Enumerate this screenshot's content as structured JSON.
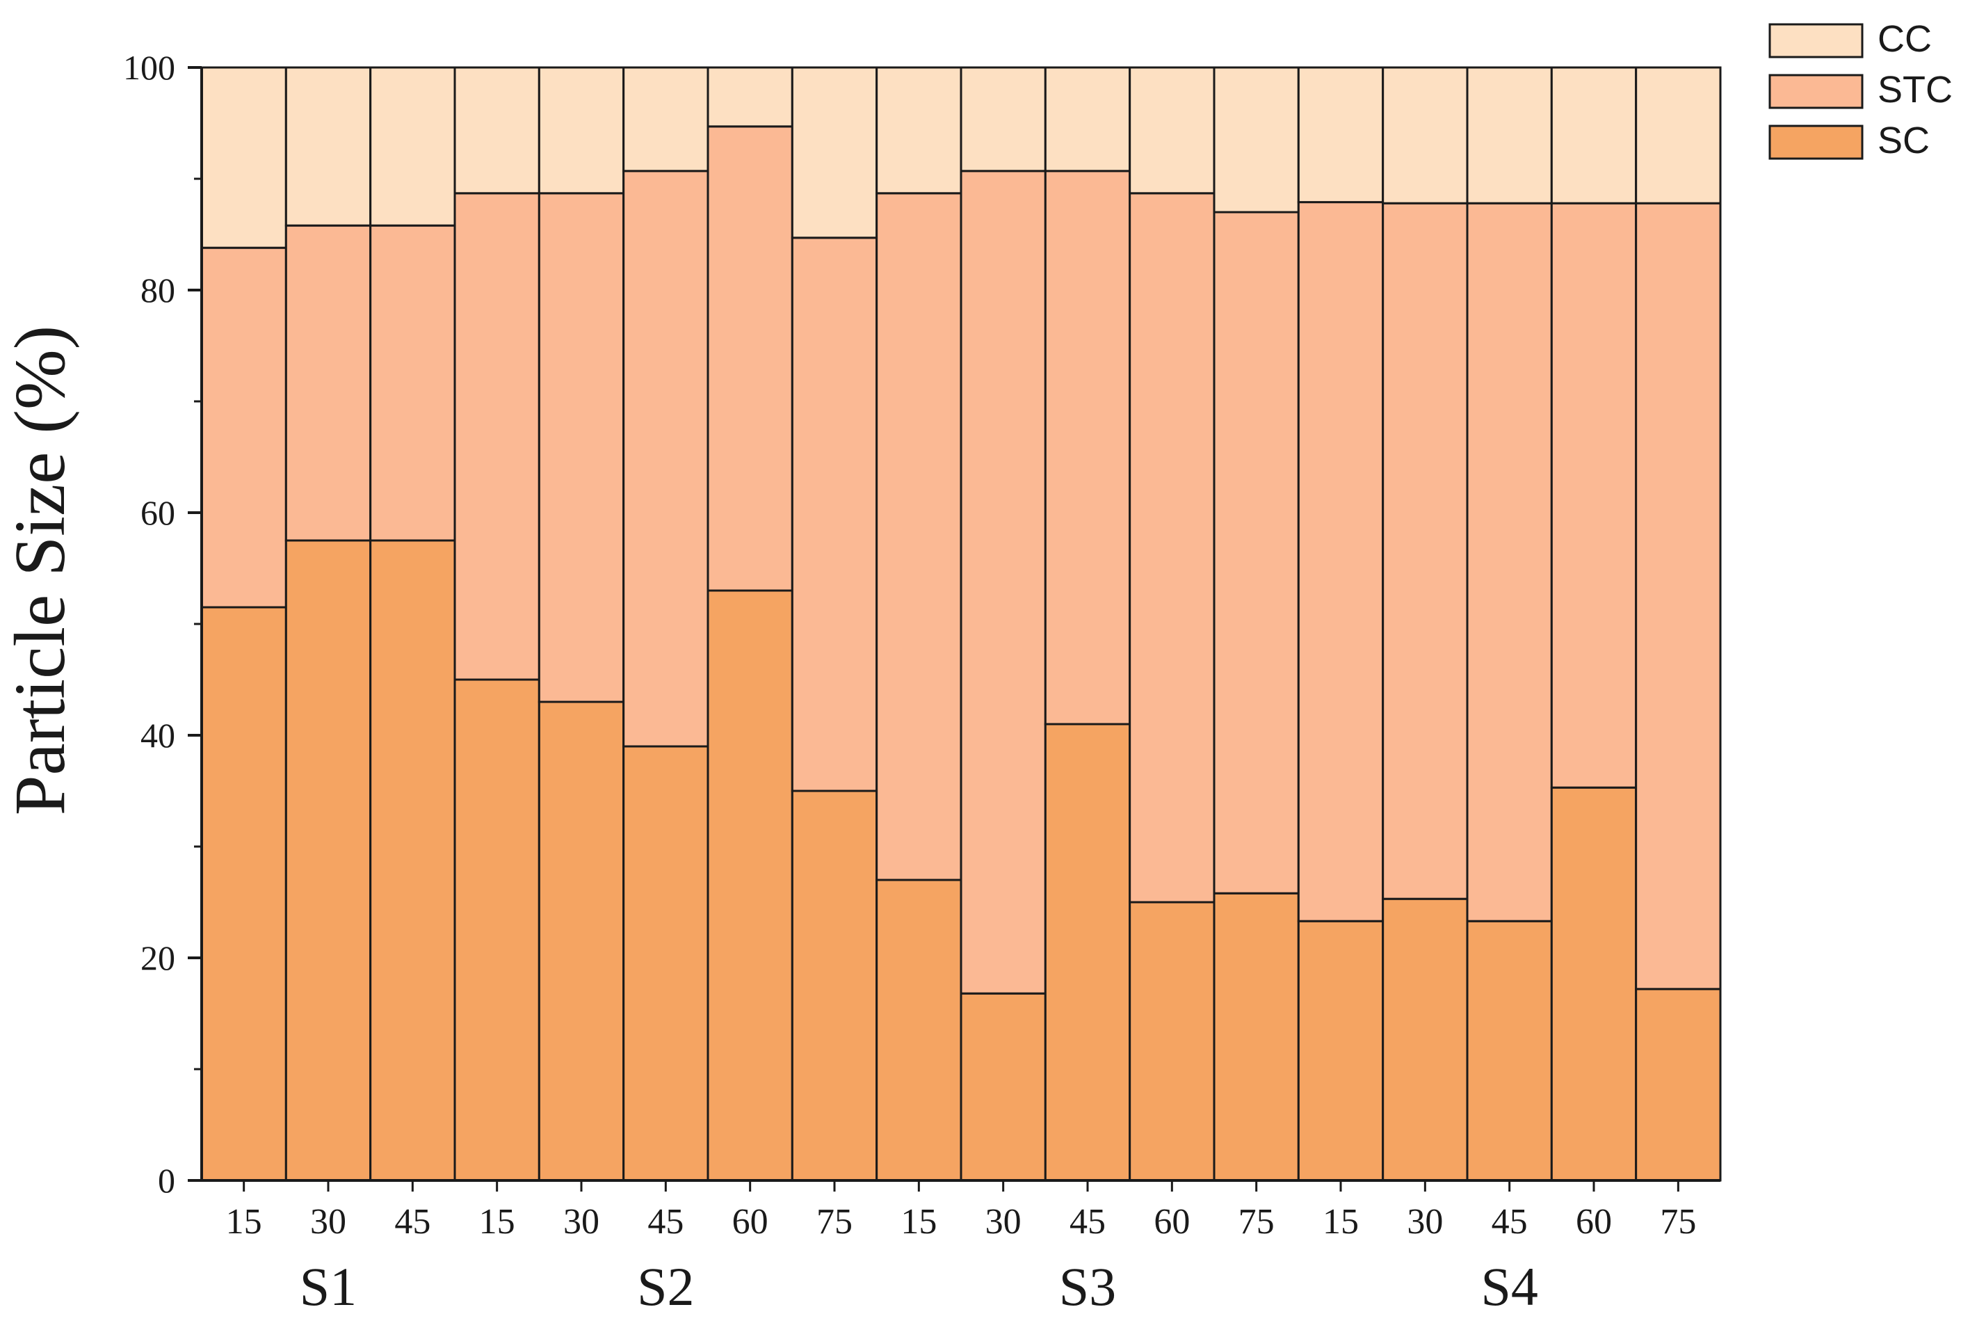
{
  "chart_data": {
    "type": "bar",
    "stacked": true,
    "ylabel": "Particle Size (%)",
    "xlabel": "",
    "ylim": [
      0,
      100
    ],
    "yticks": [
      "0",
      "20",
      "40",
      "60",
      "80",
      "100"
    ],
    "categories": [
      "15",
      "30",
      "45",
      "15",
      "30",
      "45",
      "60",
      "75",
      "15",
      "30",
      "45",
      "60",
      "75",
      "15",
      "30",
      "45",
      "60",
      "75"
    ],
    "groups": [
      {
        "label": "S1",
        "count": 3
      },
      {
        "label": "S2",
        "count": 5
      },
      {
        "label": "S3",
        "count": 5
      },
      {
        "label": "S4",
        "count": 5
      }
    ],
    "series": [
      {
        "name": "SC",
        "color": "#f5a462",
        "values": [
          51.5,
          57.5,
          57.5,
          45.0,
          43.0,
          39.0,
          53.0,
          35.0,
          27.0,
          16.8,
          41.0,
          25.0,
          25.8,
          23.3,
          25.3,
          23.3,
          35.3,
          17.2
        ]
      },
      {
        "name": "STC",
        "color": "#fbb994",
        "values": [
          32.3,
          28.3,
          28.3,
          43.7,
          45.7,
          51.7,
          41.7,
          49.7,
          61.7,
          73.9,
          49.7,
          63.7,
          61.2,
          64.6,
          62.5,
          64.5,
          52.5,
          70.6
        ]
      },
      {
        "name": "CC",
        "color": "#fde0c2",
        "values": [
          16.2,
          14.2,
          14.2,
          11.3,
          11.3,
          9.3,
          5.3,
          15.3,
          11.3,
          9.3,
          9.3,
          11.3,
          13.0,
          12.1,
          12.2,
          12.2,
          12.2,
          12.2
        ]
      }
    ],
    "legend": {
      "position": "top-right",
      "order": [
        "CC",
        "STC",
        "SC"
      ]
    },
    "grid": false
  }
}
